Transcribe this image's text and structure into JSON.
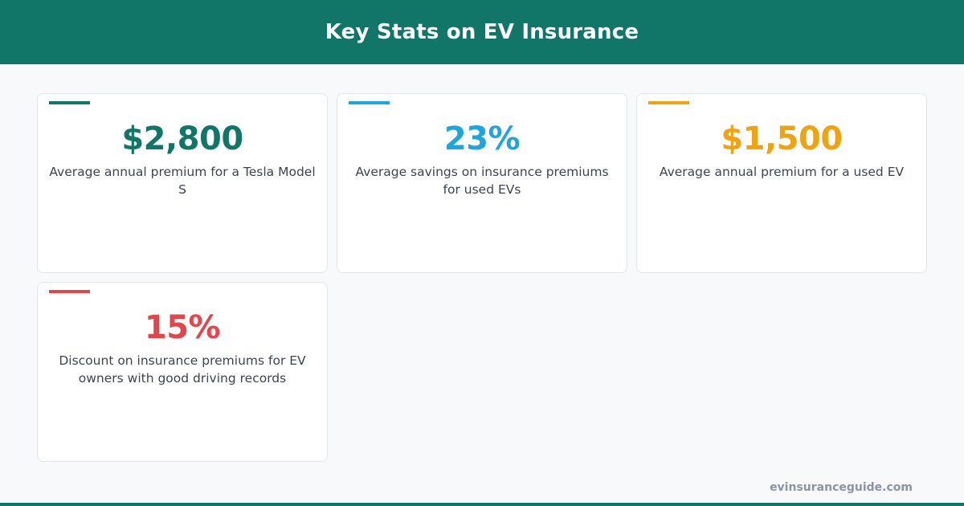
{
  "header": {
    "title": "Key Stats on EV Insurance"
  },
  "cards": [
    {
      "value": "$2,800",
      "description": "Average annual premium for a Tesla Model S",
      "color": "#117568"
    },
    {
      "value": "23%",
      "description": "Average savings on insurance premiums for used EVs",
      "color": "#1ea5dc"
    },
    {
      "value": "$1,500",
      "description": "Average annual premium for a used EV",
      "color": "#f0a312"
    },
    {
      "value": "15%",
      "description": "Discount on insurance premiums for EV owners with good driving records",
      "color": "#e0474c"
    }
  ],
  "footer": {
    "source": "evinsuranceguide.com"
  }
}
